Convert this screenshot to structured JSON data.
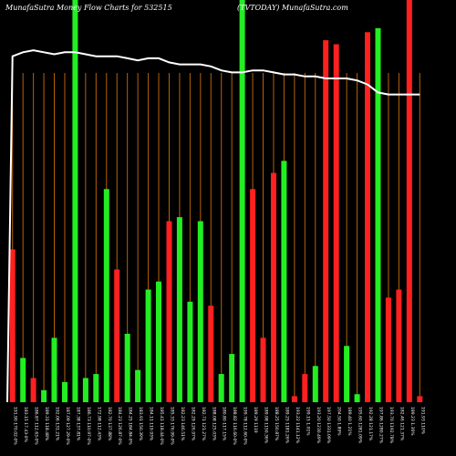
{
  "header": {
    "title": "MunafaSutra  Money Flow  Charts for 532515",
    "site": "(TVTODAY) MunafaSutra.com"
  },
  "colors": {
    "background": "#000000",
    "gridline": "#b8620a",
    "up": "#22ee22",
    "down": "#ff2020",
    "line": "#ffffff"
  },
  "chart_data": {
    "type": "bar",
    "title": "MunafaSutra  Money Flow  Charts for 532515",
    "ylim": [
      0,
      100
    ],
    "grid": true,
    "categories": [
      "191.90 170.02-0%",
      "183.15 17.43-0%",
      "186.87 112.63-0%",
      "189.31 118.48%",
      "192.06 131.21%",
      "187.09 127.29-0%",
      "187.38 137.81%",
      "186.73 110.97-0%",
      "172.98 112.43%",
      "182.70 137.88%",
      "184.23 126.87-0%",
      "184.25 184.84-0%",
      "183.91 150.39%",
      "184.11 119.93%",
      "185.41 118.44-0%",
      "185.33 176.99-0%",
      "182.23 146.51%",
      "182.29 126.97%",
      "182.71 121.27%",
      "188.08 125.03%",
      "180.80 117.15%",
      "188.82 116.60-0%",
      "199.78 112.60-0%",
      "189.29 1119",
      "189.98 1150.36%",
      "188.25 150.87%",
      "189.25 1181.26%",
      "193.22 1141.12%",
      "199.15 1.01%",
      "193.20 1230.49%",
      "197.50 1331.09%",
      "204.50 1.89%",
      "189.40 1.21%",
      "195.60 1281.09%",
      "192.28 121.17%",
      "197.86 1280.27%",
      "193.70 1192.78%",
      "182.46 121.37%",
      "189.23 1.36%",
      "191.93 110%"
    ],
    "series": [
      {
        "values": [
          38,
          11,
          6,
          3,
          16,
          5,
          100,
          6,
          7,
          53,
          33,
          17,
          8,
          28,
          30,
          45,
          46,
          25,
          45,
          24,
          7,
          12,
          100,
          53,
          16,
          57,
          60,
          1.5,
          7,
          9,
          90,
          89,
          14,
          2,
          92,
          93,
          26,
          28,
          100,
          1.5
        ],
        "colors": [
          "down",
          "up",
          "down",
          "up",
          "up",
          "up",
          "up",
          "up",
          "up",
          "up",
          "down",
          "up",
          "up",
          "up",
          "up",
          "down",
          "up",
          "up",
          "up",
          "down",
          "up",
          "up",
          "up",
          "down",
          "down",
          "down",
          "up",
          "down",
          "down",
          "up",
          "down",
          "down",
          "up",
          "up",
          "down",
          "up",
          "down",
          "down",
          "down",
          "down"
        ]
      }
    ],
    "line": [
      86,
      87,
      87.5,
      87,
      86.5,
      87,
      87,
      86.5,
      86,
      86,
      86,
      85.5,
      85,
      85.5,
      85.5,
      84.5,
      84,
      84,
      84,
      83.5,
      82.5,
      82,
      82,
      82.5,
      82.5,
      82,
      81.5,
      81.5,
      81,
      81,
      80.5,
      80.5,
      80.5,
      80,
      79,
      77,
      76.5,
      76.5,
      76.5,
      76.5
    ]
  }
}
